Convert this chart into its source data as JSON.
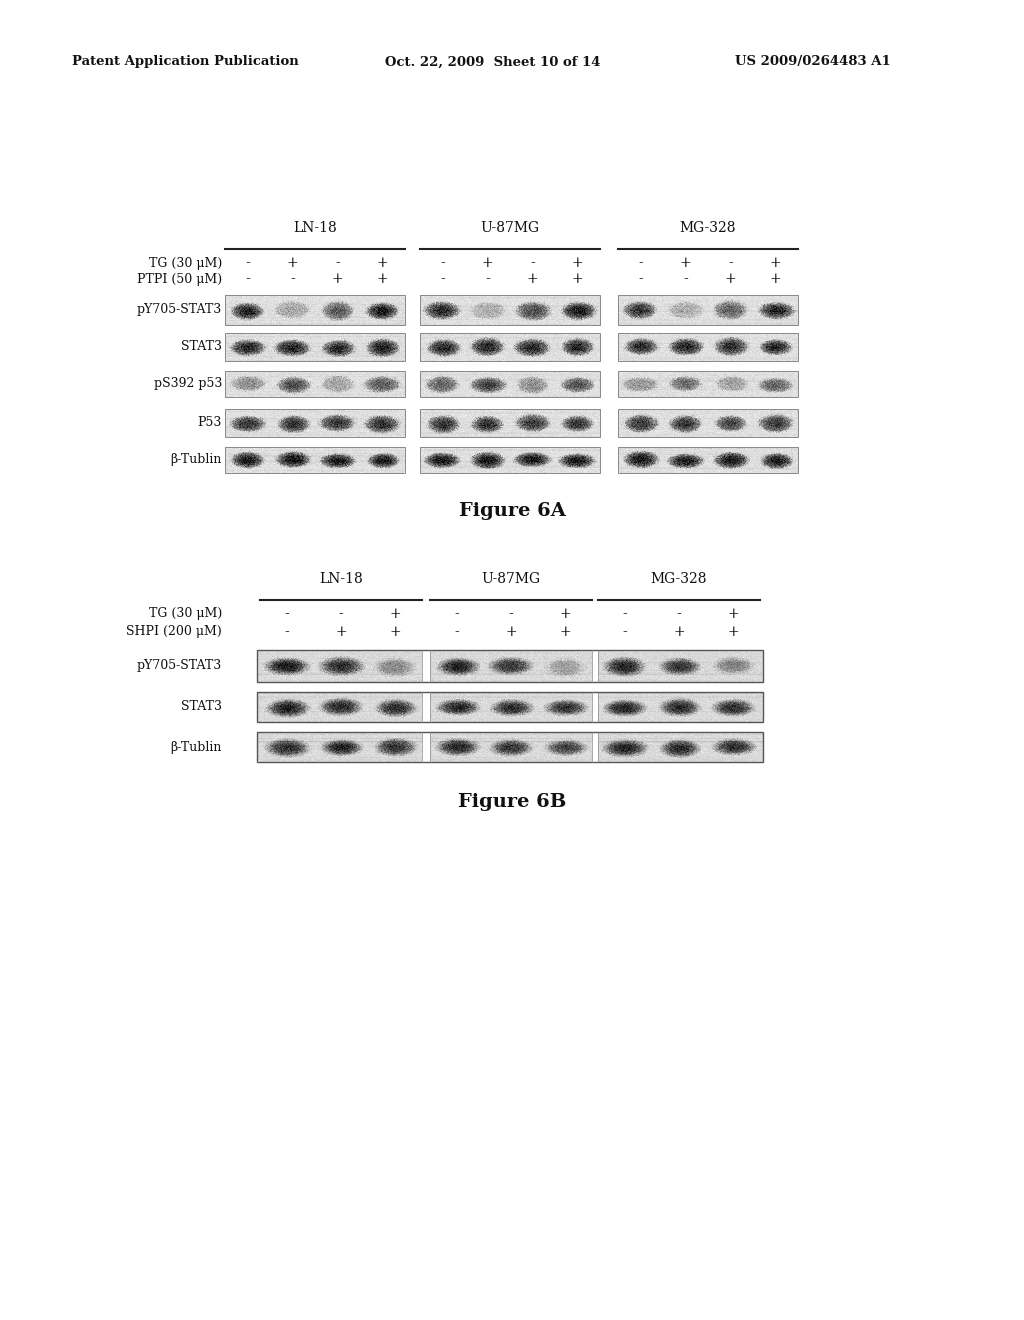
{
  "header_left": "Patent Application Publication",
  "header_mid": "Oct. 22, 2009  Sheet 10 of 14",
  "header_right": "US 2009/0264483 A1",
  "figA_title": "Figure 6A",
  "figB_title": "Figure 6B",
  "cell_lines": [
    "LN-18",
    "U-87MG",
    "MG-328"
  ],
  "figA_row1_label": "TG (30 μM)",
  "figA_row2_label": "PTPI (50 μM)",
  "figA_row1_vals": [
    [
      "-",
      "+",
      "-",
      "+"
    ],
    [
      "-",
      "+",
      "-",
      "+"
    ],
    [
      "-",
      "+",
      "-",
      "+"
    ]
  ],
  "figA_row2_vals": [
    [
      "-",
      "-",
      "+",
      "+"
    ],
    [
      "-",
      "-",
      "+",
      "+"
    ],
    [
      "-",
      "-",
      "+",
      "+"
    ]
  ],
  "figA_bands": [
    "pY705-STAT3",
    "STAT3",
    "pS392 p53",
    "P53",
    "β-Tublin"
  ],
  "figB_row1_label": "TG (30 μM)",
  "figB_row2_label": "SHPI (200 μM)",
  "figB_row1_vals": [
    [
      "-",
      "-",
      "+"
    ],
    [
      "-",
      "-",
      "+"
    ],
    [
      "-",
      "-",
      "+"
    ]
  ],
  "figB_row2_vals": [
    [
      "-",
      "+",
      "+"
    ],
    [
      "-",
      "+",
      "+"
    ],
    [
      "-",
      "+",
      "+"
    ]
  ],
  "figB_bands": [
    "pY705-STAT3",
    "STAT3",
    "β-Tublin"
  ],
  "bg_color": "#ffffff",
  "text_color": "#000000"
}
